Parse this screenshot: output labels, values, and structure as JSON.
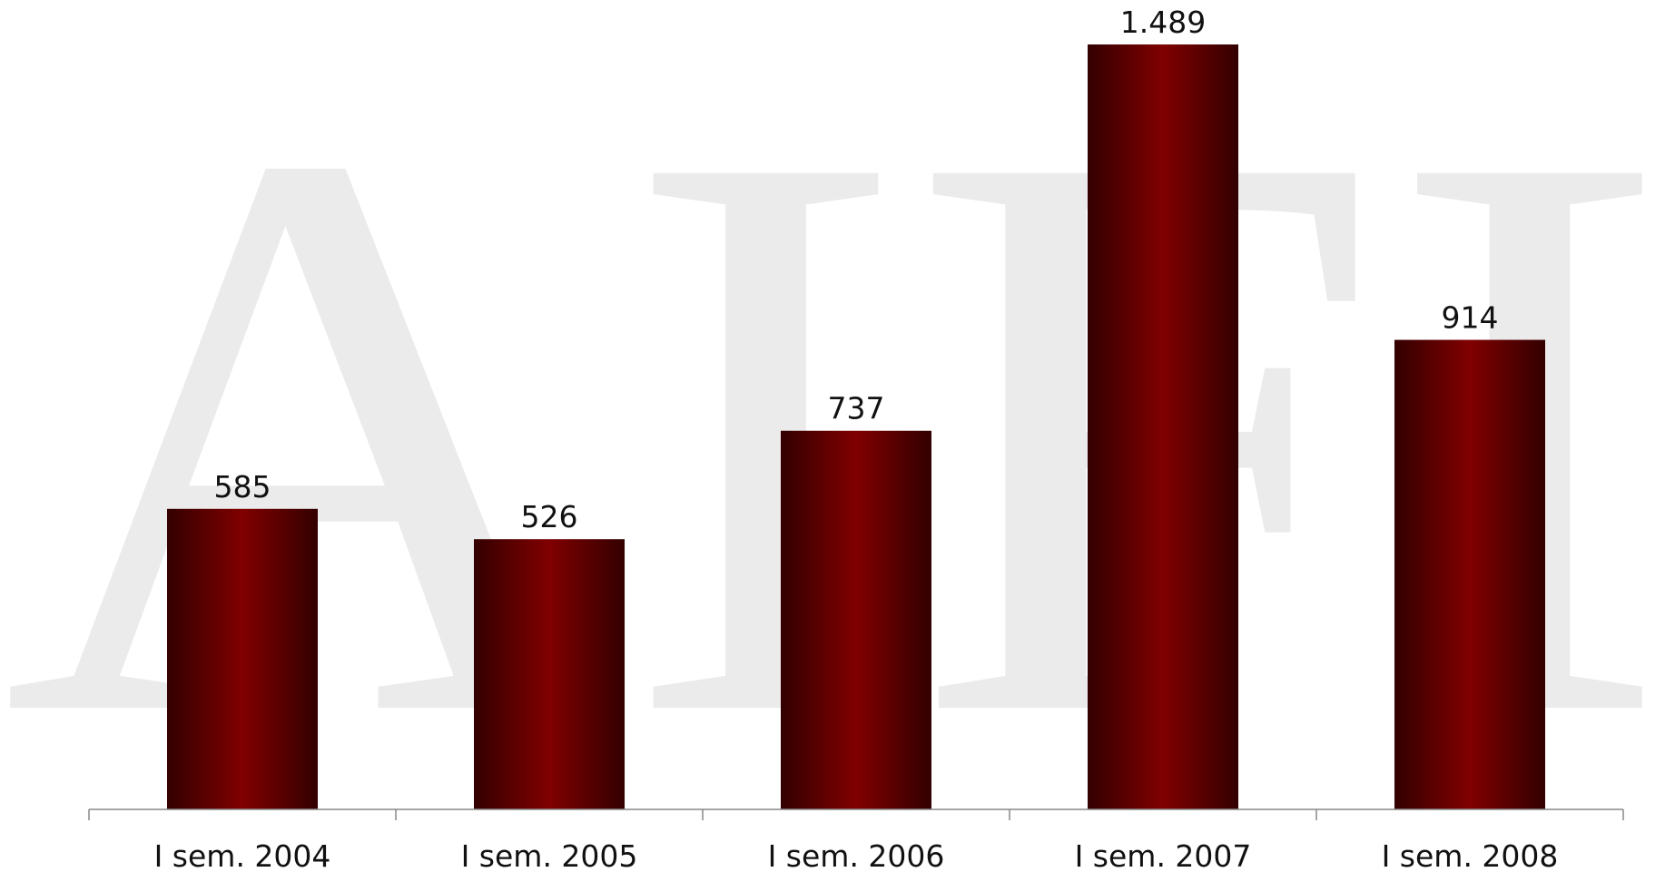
{
  "watermark": {
    "text": "AIFI",
    "color": "#ebebeb"
  },
  "chart_data": {
    "type": "bar",
    "categories": [
      "I sem. 2004",
      "I sem. 2005",
      "I sem. 2006",
      "I sem. 2007",
      "I sem. 2008"
    ],
    "values": [
      585,
      526,
      737,
      1489,
      914
    ],
    "data_labels": [
      "585",
      "526",
      "737",
      "1.489",
      "914"
    ],
    "title": "",
    "xlabel": "",
    "ylabel": "",
    "ylim": [
      0,
      1489
    ],
    "grid": false,
    "legend": "none",
    "bar_color": "#7a0000",
    "bar_edge_color": "#330000"
  }
}
